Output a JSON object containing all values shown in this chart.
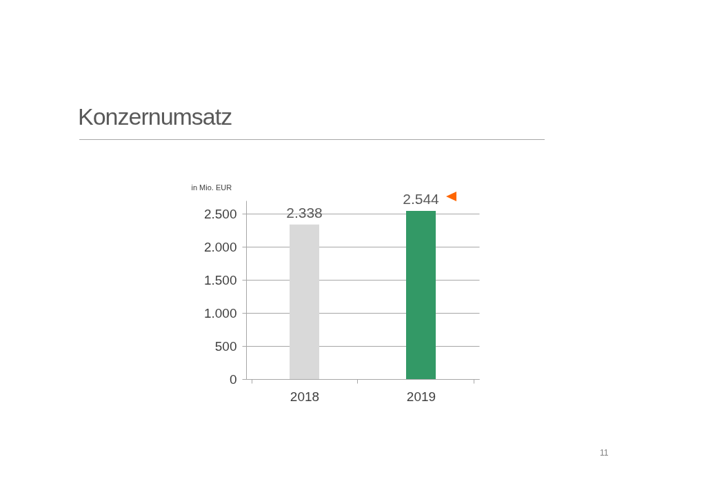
{
  "chart_data": {
    "type": "bar",
    "title": "Konzernumsatz",
    "ylabel": "in Mio. EUR",
    "categories": [
      "2018",
      "2019"
    ],
    "values": [
      2338,
      2544
    ],
    "colors": [
      "#d9d9d9",
      "#339966"
    ],
    "value_labels": [
      "2.338",
      "2.544"
    ],
    "ylim": [
      0,
      2700
    ],
    "yticks": [
      {
        "value": 0,
        "label": "0"
      },
      {
        "value": 500,
        "label": "500"
      },
      {
        "value": 1000,
        "label": "1.000"
      },
      {
        "value": 1500,
        "label": "1.500"
      },
      {
        "value": 2000,
        "label": "2.000"
      },
      {
        "value": 2500,
        "label": "2.500"
      }
    ],
    "grid": "y",
    "annotations": [
      "11"
    ]
  }
}
